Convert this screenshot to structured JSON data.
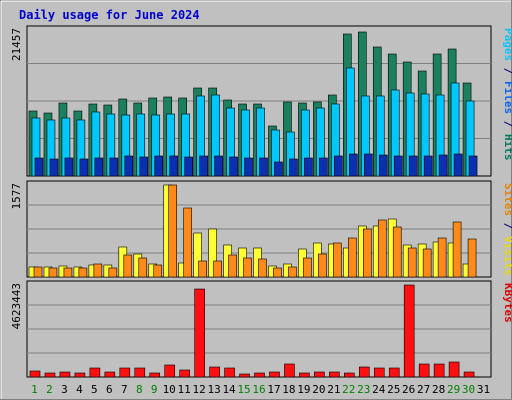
{
  "chart_data": {
    "type": "bar",
    "title": "Daily usage for June 2024",
    "categories": [
      "1",
      "2",
      "3",
      "4",
      "5",
      "6",
      "7",
      "8",
      "9",
      "10",
      "11",
      "12",
      "13",
      "14",
      "15",
      "16",
      "17",
      "18",
      "19",
      "20",
      "21",
      "22",
      "23",
      "24",
      "25",
      "26",
      "27",
      "28",
      "29",
      "30",
      "31"
    ],
    "weekend_days": [
      1,
      2,
      8,
      9,
      15,
      16,
      22,
      23,
      29,
      30
    ],
    "panels": [
      {
        "id": "hits-files-pages",
        "ymax_label": "21457",
        "ymax": 21457,
        "legend": [
          {
            "text": "Pages",
            "color": "#00c8ff"
          },
          {
            "text": " / ",
            "color": "#000080"
          },
          {
            "text": "Files",
            "color": "#0066ff"
          },
          {
            "text": " / ",
            "color": "#000080"
          },
          {
            "text": "Hits",
            "color": "#007a5e"
          }
        ],
        "series": [
          {
            "name": "Hits",
            "color": "#1a8060",
            "values": [
              9600,
              9300,
              10800,
              9600,
              10600,
              10400,
              11300,
              10700,
              11400,
              11600,
              11400,
              12900,
              12900,
              11200,
              10600,
              10600,
              7300,
              10900,
              10800,
              10900,
              11900,
              20900,
              21100,
              19000,
              17900,
              16800,
              15400,
              18000,
              18600,
              13700,
              0
            ]
          },
          {
            "name": "Files",
            "color": "#00c8ff",
            "values": [
              8500,
              8200,
              8500,
              8200,
              9400,
              9100,
              8900,
              9100,
              8900,
              9100,
              9100,
              11700,
              11900,
              10000,
              9700,
              10000,
              6800,
              6500,
              9700,
              10000,
              10600,
              15900,
              11700,
              11700,
              12600,
              12200,
              12000,
              11900,
              13700,
              11000,
              0
            ]
          },
          {
            "name": "Pages",
            "color": "#0a2fb0",
            "values": [
              2600,
              2500,
              2700,
              2500,
              2700,
              2600,
              2900,
              2800,
              2900,
              2900,
              2800,
              3000,
              3000,
              2800,
              2700,
              2700,
              2000,
              2500,
              2700,
              2700,
              2900,
              3300,
              3200,
              3100,
              3000,
              3000,
              2900,
              3100,
              3200,
              2900,
              0
            ]
          }
        ]
      },
      {
        "id": "visits-sites",
        "ymax_label": "1577",
        "ymax": 1577,
        "legend": [
          {
            "text": "Sites",
            "color": "#e88000"
          },
          {
            "text": " / ",
            "color": "#000080"
          },
          {
            "text": "Visits",
            "color": "#e8d800"
          }
        ],
        "series": [
          {
            "name": "Visits",
            "color": "#ffff33",
            "values": [
              170,
              170,
              180,
              170,
              210,
              210,
              520,
              400,
              230,
              1577,
              240,
              750,
              830,
              540,
              500,
              490,
              180,
              220,
              480,
              580,
              560,
              500,
              870,
              880,
              990,
              540,
              560,
              600,
              590,
              220,
              0
            ]
          },
          {
            "name": "Sites",
            "color": "#ff8a1a",
            "values": [
              170,
              160,
              150,
              160,
              220,
              160,
              380,
              330,
              200,
              1577,
              1190,
              280,
              280,
              380,
              320,
              300,
              160,
              170,
              330,
              390,
              580,
              670,
              820,
              970,
              850,
              490,
              480,
              660,
              940,
              650,
              0
            ]
          }
        ]
      },
      {
        "id": "kbytes",
        "ymax_label": "4623443",
        "ymax": 4623443,
        "legend": [
          {
            "text": "KBytes",
            "color": "#e00000"
          }
        ],
        "series": [
          {
            "name": "KBytes",
            "color": "#ff1010",
            "values": [
              280000,
              200000,
              250000,
              200000,
              430000,
              270000,
              440000,
              430000,
              200000,
              580000,
              330000,
              4400000,
              480000,
              470000,
              150000,
              200000,
              240000,
              640000,
              200000,
              240000,
              240000,
              210000,
              500000,
              430000,
              430000,
              4623443,
              650000,
              650000,
              730000,
              260000,
              0
            ]
          }
        ]
      }
    ]
  }
}
